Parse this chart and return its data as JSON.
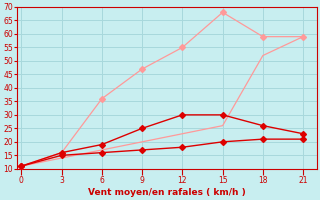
{
  "xlabel": "Vent moyen/en rafales ( km/h )",
  "x": [
    0,
    3,
    6,
    9,
    12,
    15,
    18,
    21
  ],
  "line1_y": [
    11,
    16,
    36,
    47,
    55,
    68,
    59,
    59
  ],
  "line2_y": [
    11,
    14,
    17,
    20,
    23,
    26,
    52,
    59
  ],
  "line3_y": [
    11,
    16,
    19,
    25,
    30,
    30,
    26,
    23
  ],
  "line4_y": [
    11,
    15,
    16,
    17,
    18,
    20,
    21,
    21
  ],
  "color_light": "#ff9999",
  "color_dark": "#dd0000",
  "bg_color": "#c8eef0",
  "grid_color": "#a8d8dc",
  "tick_color": "#cc0000",
  "label_color": "#cc0000",
  "ylim": [
    10,
    70
  ],
  "yticks": [
    10,
    15,
    20,
    25,
    30,
    35,
    40,
    45,
    50,
    55,
    60,
    65,
    70
  ],
  "xticks": [
    0,
    3,
    6,
    9,
    12,
    15,
    18,
    21
  ],
  "markersize": 3
}
